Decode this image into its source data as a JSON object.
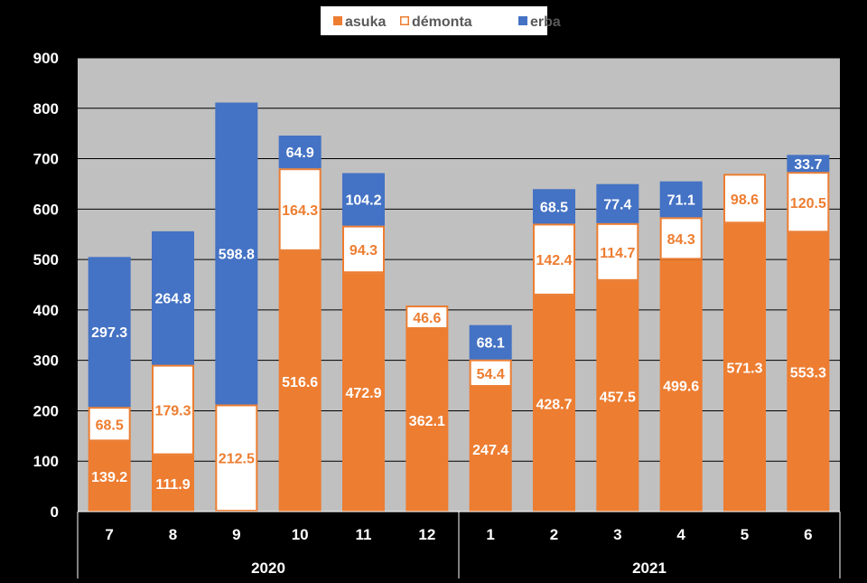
{
  "chart_data": {
    "type": "bar",
    "stacked": true,
    "categories": [
      "7",
      "8",
      "9",
      "10",
      "11",
      "12",
      "1",
      "2",
      "3",
      "4",
      "5",
      "6"
    ],
    "groups": [
      {
        "label": "2020",
        "categories": [
          "7",
          "8",
          "9",
          "10",
          "11",
          "12"
        ]
      },
      {
        "label": "2021",
        "categories": [
          "1",
          "2",
          "3",
          "4",
          "5",
          "6"
        ]
      }
    ],
    "series": [
      {
        "name": "asuka",
        "color": "#ED7D31",
        "label_color": "#FFFFFF",
        "values": [
          139.2,
          111.9,
          0,
          516.6,
          472.9,
          362.1,
          247.4,
          428.7,
          457.5,
          499.6,
          571.3,
          553.3
        ]
      },
      {
        "name": "démonta",
        "color": "#FFFFFF",
        "outline": "#ED7D31",
        "label_color": "#ED7D31",
        "values": [
          68.5,
          179.3,
          212.5,
          164.3,
          94.3,
          46.6,
          54.4,
          142.4,
          114.7,
          84.3,
          98.6,
          120.5
        ]
      },
      {
        "name": "erba",
        "color": "#4472C4",
        "label_color": "#FFFFFF",
        "values": [
          297.3,
          264.8,
          598.8,
          64.9,
          104.2,
          0,
          68.1,
          68.5,
          77.4,
          71.1,
          0,
          33.7
        ]
      }
    ],
    "y_ticks": [
      "0",
      "100",
      "200",
      "300",
      "400",
      "500",
      "600",
      "700",
      "800",
      "900"
    ],
    "ylim": [
      0,
      900
    ],
    "grid": true,
    "legend_position": "top",
    "plot_background": "#C0C0C0",
    "page_background": "#000000",
    "title": "",
    "xlabel": "",
    "ylabel": ""
  }
}
